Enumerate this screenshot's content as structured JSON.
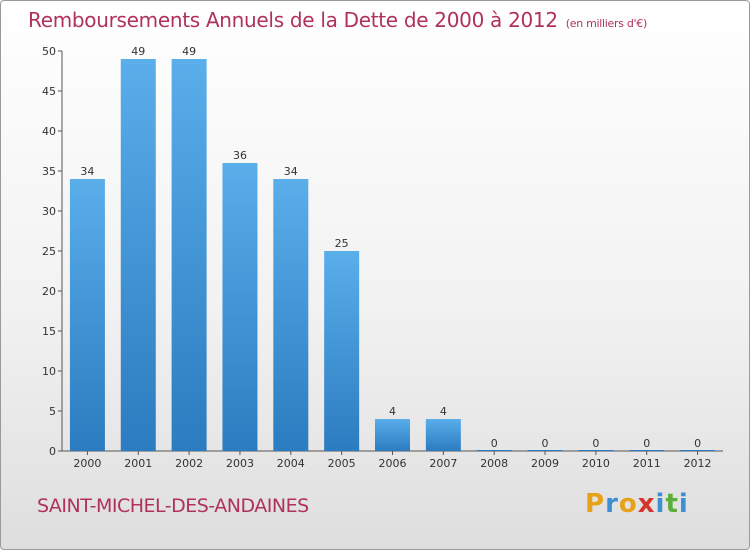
{
  "header": {
    "title": "Remboursements Annuels de la Dette de 2000 à 2012",
    "subtitle": "(en milliers d'€)"
  },
  "footer": {
    "commune": "SAINT-MICHEL-DES-ANDAINES",
    "logo_letters": [
      "P",
      "r",
      "o",
      "x",
      "i",
      "t",
      "i"
    ],
    "logo_colors": [
      "#e8a21a",
      "#3c8fd0",
      "#e8a21a",
      "#d8322c",
      "#3c8fd0",
      "#5aae3a",
      "#3c8fd0"
    ]
  },
  "chart_data": {
    "type": "bar",
    "categories": [
      "2000",
      "2001",
      "2002",
      "2003",
      "2004",
      "2005",
      "2006",
      "2007",
      "2008",
      "2009",
      "2010",
      "2011",
      "2012"
    ],
    "values": [
      34,
      49,
      49,
      36,
      34,
      25,
      4,
      4,
      0,
      0,
      0,
      0,
      0
    ],
    "value_labels": [
      "34",
      "49",
      "49",
      "36",
      "34",
      "25",
      "4",
      "4",
      "0",
      "0",
      "0",
      "0",
      "0"
    ],
    "yticks": [
      "0",
      "5",
      "10",
      "15",
      "20",
      "25",
      "30",
      "35",
      "40",
      "45",
      "50"
    ],
    "ylim": [
      0,
      50
    ],
    "grid": false,
    "bar_color_top": "#5aaeea",
    "bar_color_bottom": "#2b7cc0"
  }
}
